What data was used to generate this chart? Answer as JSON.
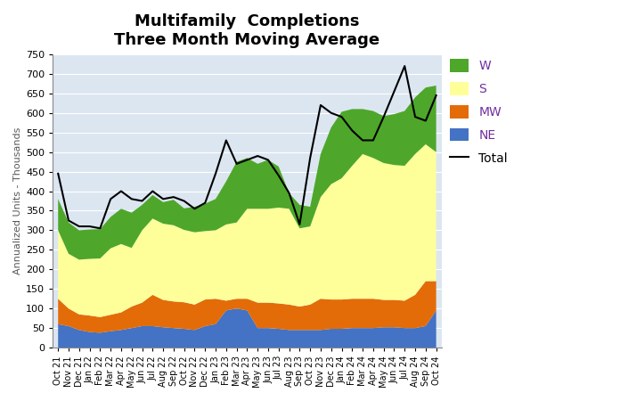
{
  "title": "Multifamily  Completions",
  "subtitle": "Three Month Moving Average",
  "ylabel": "Annualized Units - Thousands",
  "ylim": [
    0,
    750
  ],
  "yticks": [
    0,
    50,
    100,
    150,
    200,
    250,
    300,
    350,
    400,
    450,
    500,
    550,
    600,
    650,
    700,
    750
  ],
  "labels": [
    "Oct 21",
    "Nov 21",
    "Dec 21",
    "Jan 22",
    "Feb 22",
    "Mar 22",
    "Apr 22",
    "May 22",
    "Jun 22",
    "Jul 22",
    "Aug 22",
    "Sep 22",
    "Oct 22",
    "Nov 22",
    "Dec 22",
    "Jan 23",
    "Feb 23",
    "Mar 23",
    "Apr 23",
    "May 23",
    "Jun 23",
    "Jul 23",
    "Aug 23",
    "Sep 23",
    "Oct 23",
    "Nov 23",
    "Dec 23",
    "Jan 24",
    "Feb 24",
    "Mar 24",
    "Apr 24",
    "May 24",
    "Jun 24",
    "Jul 24",
    "Aug 24",
    "Sep 24",
    "Oct 24"
  ],
  "NE": [
    60,
    55,
    45,
    40,
    38,
    42,
    45,
    50,
    55,
    55,
    52,
    50,
    48,
    45,
    55,
    60,
    95,
    100,
    95,
    50,
    50,
    48,
    45,
    45,
    45,
    45,
    48,
    48,
    50,
    50,
    50,
    52,
    52,
    50,
    50,
    55,
    95
  ],
  "MW": [
    65,
    45,
    40,
    42,
    40,
    42,
    45,
    55,
    60,
    80,
    70,
    68,
    68,
    65,
    68,
    65,
    25,
    25,
    30,
    65,
    65,
    65,
    65,
    60,
    65,
    80,
    75,
    75,
    75,
    75,
    75,
    70,
    70,
    70,
    85,
    115,
    75
  ],
  "S": [
    175,
    140,
    140,
    145,
    150,
    170,
    175,
    150,
    185,
    195,
    195,
    195,
    185,
    185,
    175,
    175,
    195,
    195,
    230,
    240,
    240,
    245,
    245,
    200,
    200,
    260,
    295,
    310,
    340,
    370,
    360,
    350,
    345,
    345,
    360,
    350,
    330
  ],
  "W": [
    80,
    80,
    75,
    75,
    75,
    80,
    90,
    90,
    65,
    60,
    55,
    65,
    55,
    65,
    70,
    80,
    110,
    155,
    130,
    115,
    125,
    105,
    40,
    60,
    50,
    110,
    145,
    170,
    145,
    115,
    120,
    120,
    130,
    140,
    145,
    145,
    170
  ],
  "Total": [
    445,
    325,
    310,
    310,
    305,
    380,
    400,
    380,
    375,
    400,
    380,
    385,
    375,
    355,
    370,
    445,
    530,
    470,
    480,
    490,
    480,
    440,
    395,
    315,
    485,
    620,
    600,
    590,
    555,
    530,
    530,
    590,
    655,
    720,
    590,
    580,
    645
  ],
  "colors": {
    "NE": "#4472C4",
    "MW": "#E36C09",
    "S": "#FFFF99",
    "W": "#4EA72A",
    "Total": "#000000"
  },
  "plot_bg": "#DCE6F1",
  "fig_bg": "#FFFFFF",
  "title_color": "#000000",
  "legend_text_color": "#7030A0",
  "title_fontsize": 13,
  "subtitle_fontsize": 11,
  "legend_fontsize": 10,
  "ylabel_fontsize": 8
}
